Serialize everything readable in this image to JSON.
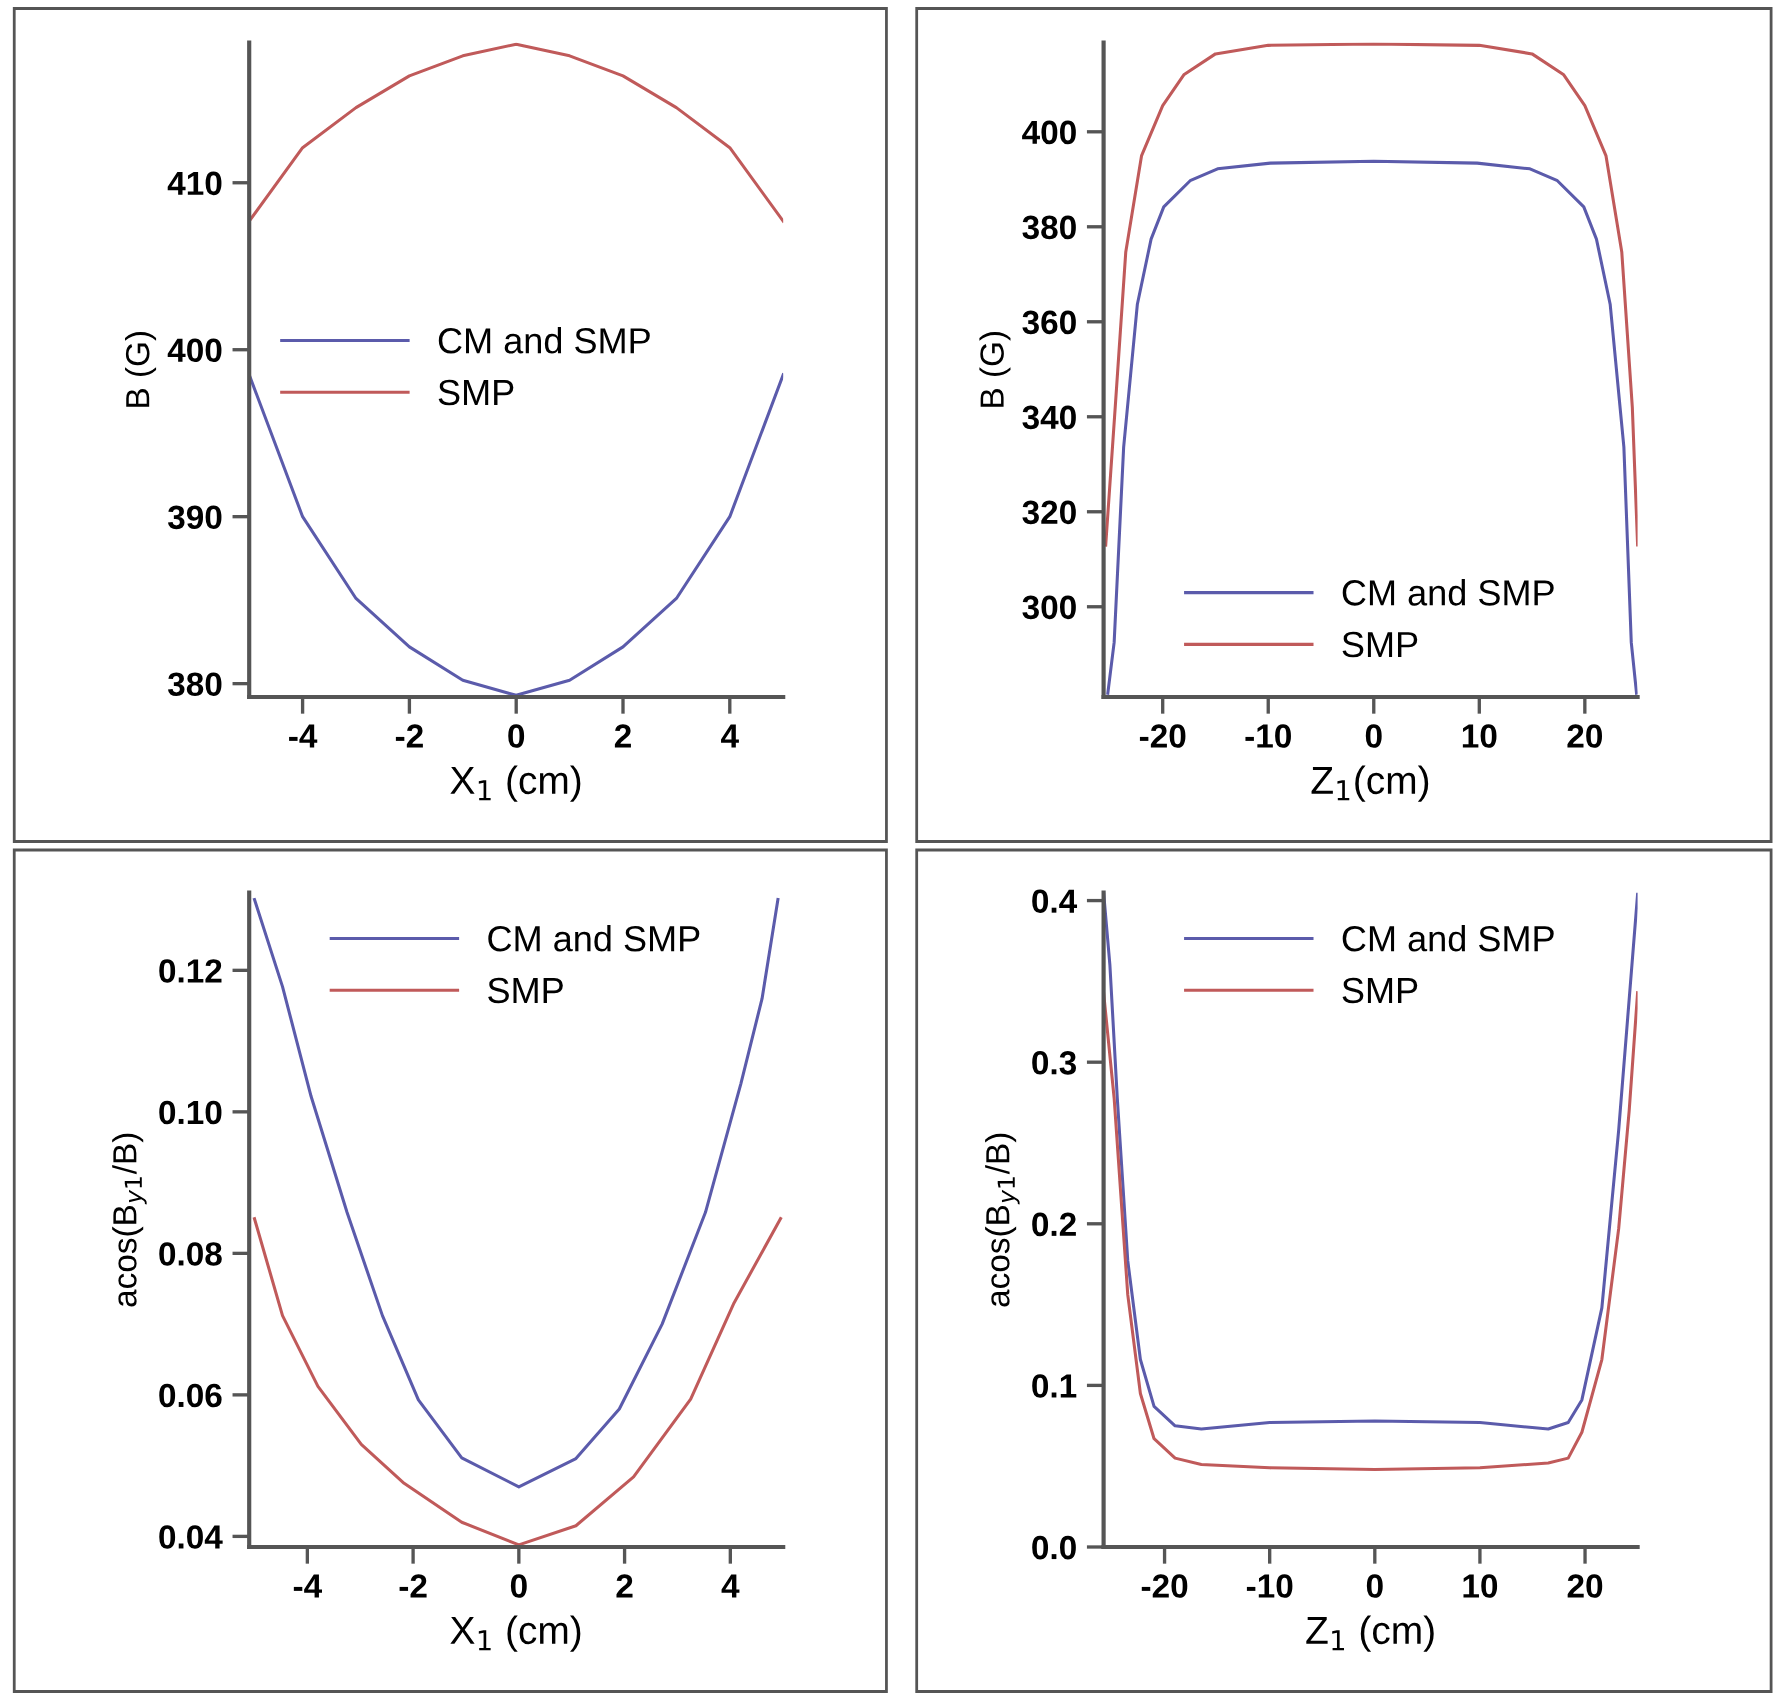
{
  "chart_data": [
    {
      "type": "line",
      "xlabel": "X$_{1}$ (cm)",
      "ylabel": "B (G)",
      "xlim": [
        -5,
        5
      ],
      "ylim": [
        379.2,
        418.4
      ],
      "xticks": [
        -4,
        -2,
        0,
        2,
        4
      ],
      "yticks": [
        380,
        390,
        400,
        410
      ],
      "grid": false,
      "legend": "left",
      "x": [
        -5,
        -4,
        -3,
        -2,
        -1,
        0,
        1,
        2,
        3,
        4,
        5
      ],
      "series": [
        {
          "name": "CM and SMP",
          "color": "#5b5bab",
          "values": [
            398.5,
            390,
            385.1,
            382.2,
            380.2,
            379.3,
            380.2,
            382.2,
            385.1,
            390,
            398.5
          ]
        },
        {
          "name": "SMP",
          "color": "#c05a5a",
          "values": [
            407.7,
            412.1,
            414.5,
            416.4,
            417.6,
            418.3,
            417.6,
            416.4,
            414.5,
            412.1,
            407.7
          ]
        }
      ]
    },
    {
      "type": "line",
      "xlabel": "Z$_{1}$(cm)",
      "ylabel": "B (G)",
      "xlim": [
        -25.6,
        25
      ],
      "ylim": [
        281,
        418.8
      ],
      "xticks": [
        -20,
        -10,
        0,
        10,
        20
      ],
      "yticks": [
        300,
        320,
        340,
        360,
        380,
        400
      ],
      "grid": false,
      "legend": "bottom",
      "series": [
        {
          "name": "CM and SMP",
          "color": "#5b5bab",
          "x": [
            -25.2,
            -24.6,
            -23.7,
            -22.4,
            -21.1,
            -19.9,
            -17.4,
            -14.8,
            -9.8,
            0,
            9.8,
            14.8,
            17.4,
            19.9,
            21.1,
            22.4,
            23.7,
            24.4,
            24.9
          ],
          "values": [
            281.8,
            292.5,
            333.6,
            363.7,
            377.4,
            384.2,
            389.7,
            392.2,
            393.4,
            393.8,
            393.4,
            392.2,
            389.7,
            384.2,
            377.4,
            363.7,
            333.6,
            292.5,
            281.8
          ]
        },
        {
          "name": "SMP",
          "color": "#c05a5a",
          "x": [
            -25.4,
            -24.5,
            -23.5,
            -22,
            -20,
            -18,
            -15,
            -10,
            0,
            10,
            15,
            18,
            20,
            22,
            23.5,
            24.5,
            25
          ],
          "values": [
            313,
            342,
            374.7,
            395,
            405.5,
            412,
            416.4,
            418.2,
            418.5,
            418.2,
            416.4,
            412,
            405.5,
            395,
            374.7,
            342,
            313
          ]
        }
      ]
    },
    {
      "type": "line",
      "xlabel": "X$_{1}$ (cm)",
      "ylabel": "acos(B$_{y1}$/B)",
      "xlim": [
        -5.1,
        5
      ],
      "ylim": [
        0.0385,
        0.131
      ],
      "xticks": [
        -4,
        -2,
        0,
        2,
        4
      ],
      "yticks": [
        {
          "value": 0.04,
          "label": "0.04"
        },
        {
          "value": 0.06,
          "label": "0.06"
        },
        {
          "value": 0.08,
          "label": "0.08"
        },
        {
          "value": 0.1,
          "label": "0.10"
        },
        {
          "value": 0.12,
          "label": "0.12"
        }
      ],
      "grid": false,
      "legend": "top",
      "series": [
        {
          "name": "CM and SMP",
          "color": "#5b5bab",
          "x": [
            -5,
            -4.47,
            -3.93,
            -3.25,
            -2.58,
            -1.9,
            -1.08,
            0,
            1.08,
            1.9,
            2.71,
            3.53,
            4.2,
            4.6,
            4.9
          ],
          "values": [
            0.13,
            0.1177,
            0.1022,
            0.0858,
            0.0712,
            0.0593,
            0.0511,
            0.047,
            0.051,
            0.058,
            0.07,
            0.0858,
            0.104,
            0.116,
            0.13
          ]
        },
        {
          "name": "SMP",
          "color": "#c05a5a",
          "x": [
            -5,
            -4.47,
            -3.8,
            -2.98,
            -2.17,
            -1.08,
            0,
            1.08,
            2.17,
            3.25,
            4.07,
            4.95
          ],
          "values": [
            0.0849,
            0.0712,
            0.0612,
            0.053,
            0.0475,
            0.042,
            0.0388,
            0.0415,
            0.0484,
            0.0594,
            0.073,
            0.0849
          ]
        }
      ]
    },
    {
      "type": "line",
      "xlabel": "Z$_{1}$ (cm)",
      "ylabel": "acos(B$_{y1}$/B)",
      "xlim": [
        -25.8,
        25
      ],
      "ylim": [
        0,
        0.405
      ],
      "xticks": [
        -20,
        -10,
        0,
        10,
        20
      ],
      "yticks": [
        {
          "value": 0,
          "label": "0.0"
        },
        0.1,
        0.2,
        0.3,
        0.4
      ],
      "grid": false,
      "legend": "top",
      "series": [
        {
          "name": "CM and SMP",
          "color": "#5b5bab",
          "x": [
            -25.8,
            -25.2,
            -24.5,
            -23.5,
            -22.3,
            -21,
            -19,
            -16.5,
            -10,
            0,
            10,
            16.5,
            18.4,
            19.7,
            21.6,
            23.2,
            24.2,
            25
          ],
          "values": [
            0.405,
            0.36,
            0.278,
            0.177,
            0.116,
            0.087,
            0.075,
            0.073,
            0.077,
            0.078,
            0.077,
            0.073,
            0.077,
            0.091,
            0.148,
            0.258,
            0.339,
            0.404
          ]
        },
        {
          "name": "SMP",
          "color": "#c05a5a",
          "x": [
            -25.8,
            -24.8,
            -23.5,
            -22.3,
            -21,
            -19,
            -16.5,
            -10,
            0,
            10,
            16.5,
            18.4,
            19.7,
            21.6,
            23.2,
            24.2,
            25
          ],
          "values": [
            0.343,
            0.278,
            0.156,
            0.095,
            0.067,
            0.055,
            0.051,
            0.049,
            0.048,
            0.049,
            0.052,
            0.055,
            0.071,
            0.116,
            0.197,
            0.27,
            0.343
          ]
        }
      ]
    }
  ]
}
